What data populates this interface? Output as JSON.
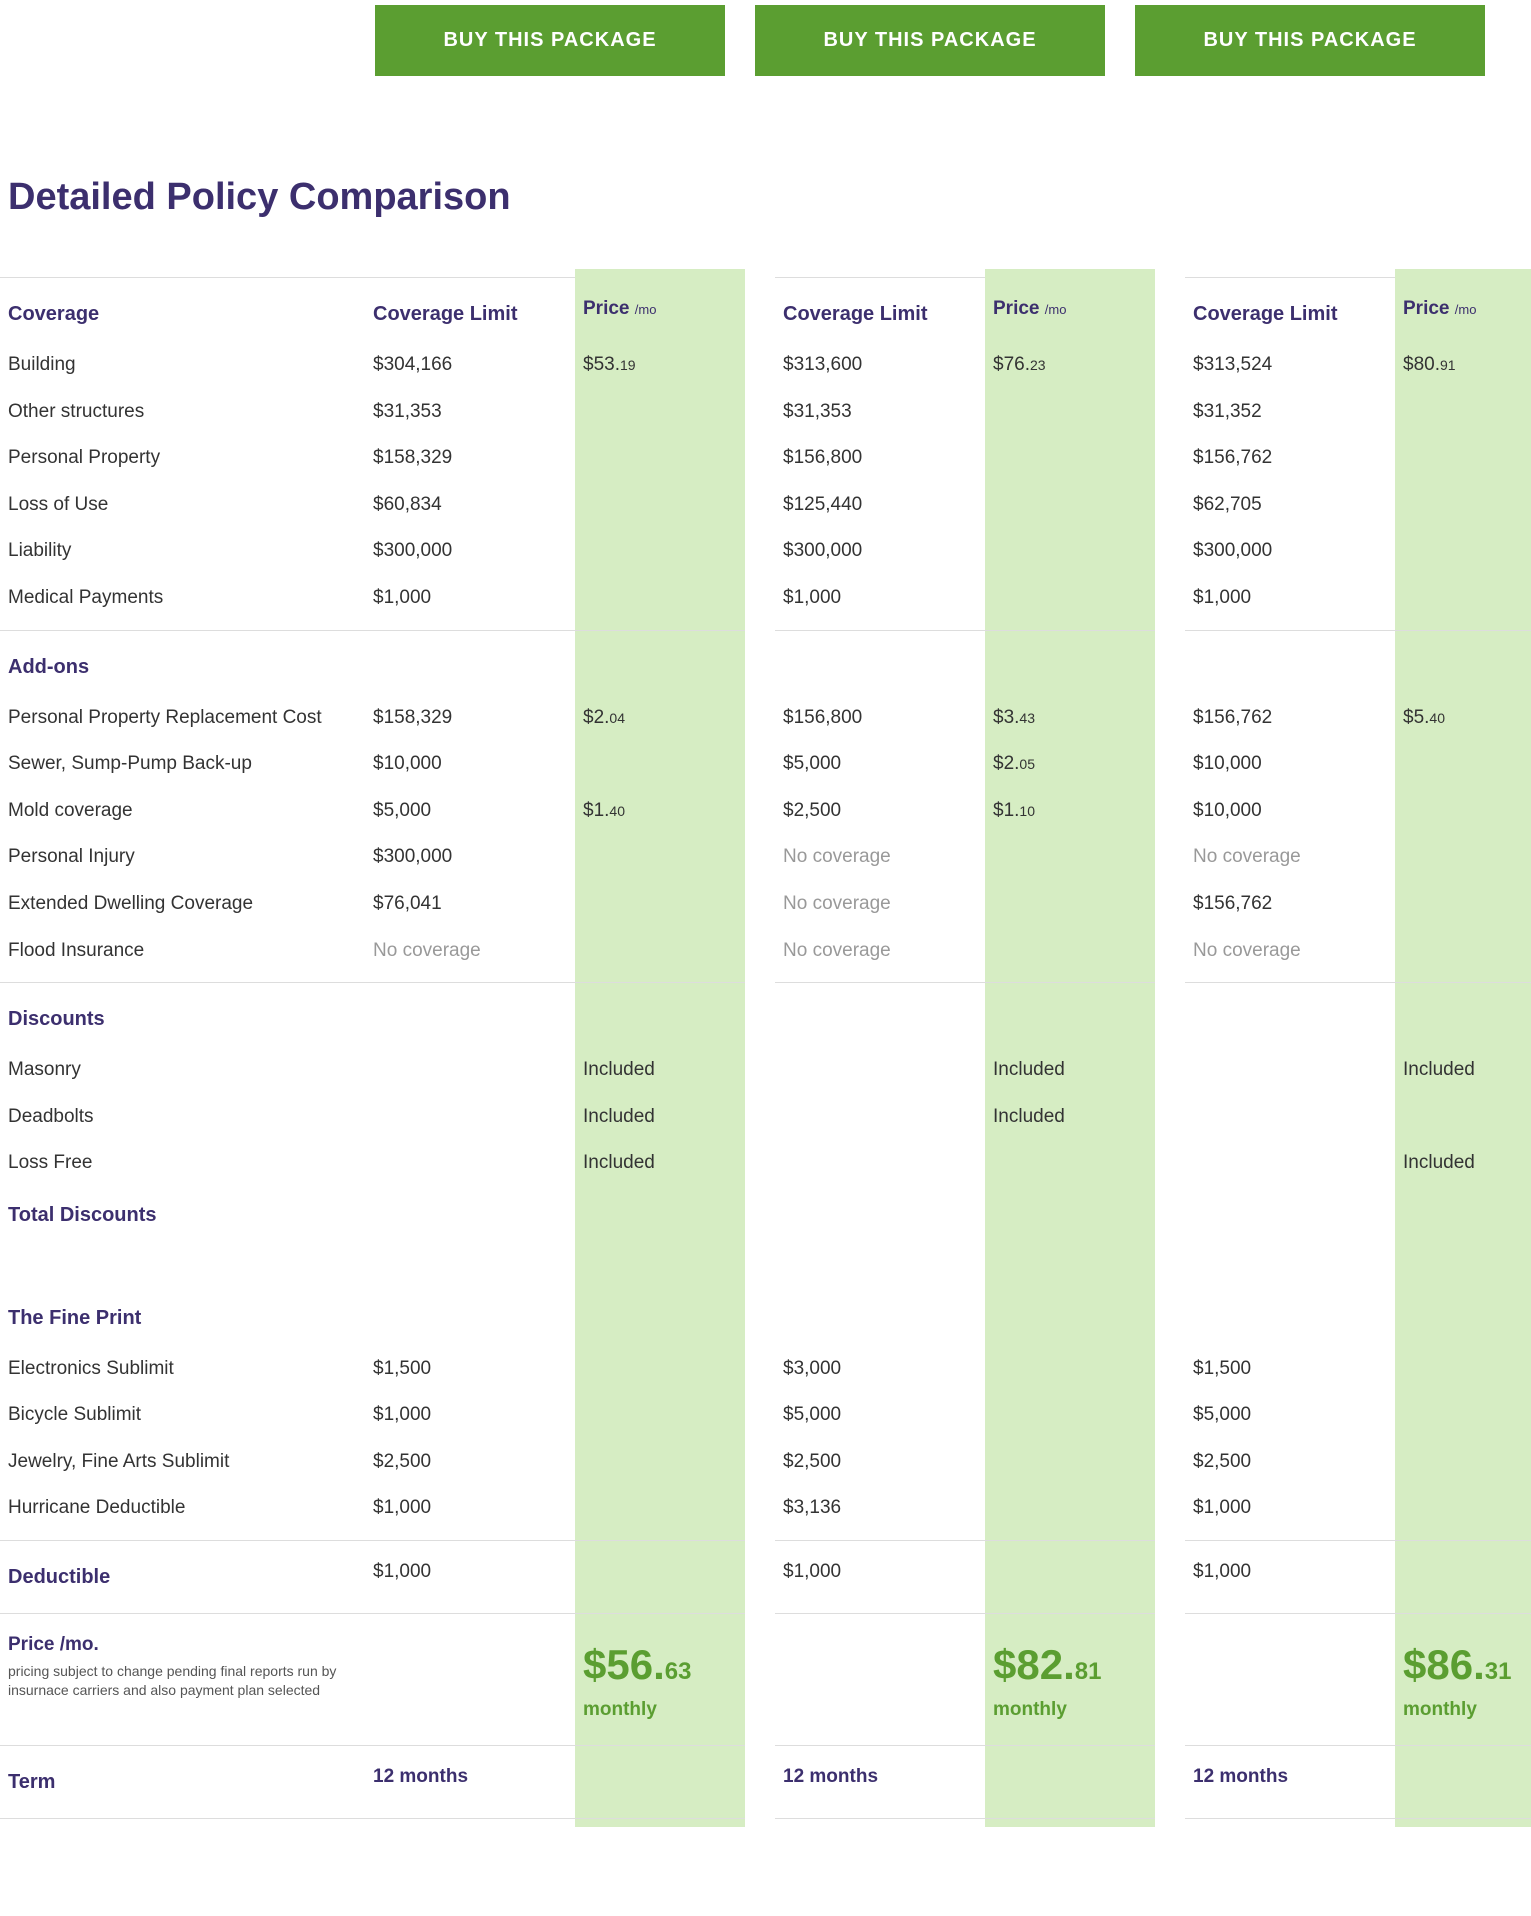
{
  "colors": {
    "accent_green": "#5b9e31",
    "accent_green_light": "#d6edc3",
    "heading_navy": "#3c2f6e",
    "text_body": "#333333",
    "text_muted": "#999999",
    "rule": "#dddddd",
    "background": "#ffffff",
    "button_text": "#ffffff"
  },
  "buttons": {
    "buy_label": "BUY THIS PACKAGE"
  },
  "page_title": "Detailed Policy Comparison",
  "headers": {
    "coverage": "Coverage",
    "coverage_limit": "Coverage Limit",
    "price": "Price",
    "price_suffix": "/mo",
    "addons": "Add-ons",
    "discounts": "Discounts",
    "total_discounts": "Total Discounts",
    "fine_print": "The Fine Print",
    "deductible": "Deductible",
    "price_mo": "Price /mo.",
    "price_mo_sub": "pricing subject to change pending final reports run by insurnace carriers and also payment plan selected",
    "term": "Term",
    "monthly": "monthly"
  },
  "coverage_rows": [
    {
      "label": "Building",
      "p1": "$304,166",
      "p2": "$313,600",
      "p3": "$313,524"
    },
    {
      "label": "Other structures",
      "p1": "$31,353",
      "p2": "$31,353",
      "p3": "$31,352"
    },
    {
      "label": "Personal Property",
      "p1": "$158,329",
      "p2": "$156,800",
      "p3": "$156,762"
    },
    {
      "label": "Loss of Use",
      "p1": "$60,834",
      "p2": "$125,440",
      "p3": "$62,705"
    },
    {
      "label": "Liability",
      "p1": "$300,000",
      "p2": "$300,000",
      "p3": "$300,000"
    },
    {
      "label": "Medical Payments",
      "p1": "$1,000",
      "p2": "$1,000",
      "p3": "$1,000"
    }
  ],
  "coverage_price": {
    "p1_big": "$53.",
    "p1_small": "19",
    "p2_big": "$76.",
    "p2_small": "23",
    "p3_big": "$80.",
    "p3_small": "91"
  },
  "addons": [
    {
      "label": "Personal Property Replacement Cost",
      "p1": "$158,329",
      "p1p_big": "$2.",
      "p1p_small": "04",
      "p2": "$156,800",
      "p2p_big": "$3.",
      "p2p_small": "43",
      "p3": "$156,762",
      "p3p_big": "$5.",
      "p3p_small": "40"
    },
    {
      "label": "Sewer, Sump-Pump Back-up",
      "p1": "$10,000",
      "p1p_big": "",
      "p1p_small": "",
      "p2": "$5,000",
      "p2p_big": "$2.",
      "p2p_small": "05",
      "p3": "$10,000",
      "p3p_big": "",
      "p3p_small": ""
    },
    {
      "label": "Mold coverage",
      "p1": "$5,000",
      "p1p_big": "$1.",
      "p1p_small": "40",
      "p2": "$2,500",
      "p2p_big": "$1.",
      "p2p_small": "10",
      "p3": "$10,000",
      "p3p_big": "",
      "p3p_small": ""
    },
    {
      "label": "Personal Injury",
      "p1": "$300,000",
      "p1_muted": false,
      "p1p_big": "",
      "p1p_small": "",
      "p2": "No coverage",
      "p2_muted": true,
      "p2p_big": "",
      "p2p_small": "",
      "p3": "No coverage",
      "p3_muted": true,
      "p3p_big": "",
      "p3p_small": ""
    },
    {
      "label": "Extended Dwelling Coverage",
      "p1": "$76,041",
      "p1_muted": false,
      "p1p_big": "",
      "p1p_small": "",
      "p2": "No coverage",
      "p2_muted": true,
      "p2p_big": "",
      "p2p_small": "",
      "p3": "$156,762",
      "p3_muted": false,
      "p3p_big": "",
      "p3p_small": ""
    },
    {
      "label": "Flood Insurance",
      "p1": "No coverage",
      "p1_muted": true,
      "p1p_big": "",
      "p1p_small": "",
      "p2": "No coverage",
      "p2_muted": true,
      "p2p_big": "",
      "p2p_small": "",
      "p3": "No coverage",
      "p3_muted": true,
      "p3p_big": "",
      "p3p_small": ""
    }
  ],
  "discounts": [
    {
      "label": "Masonry",
      "p1": "Included",
      "p2": "Included",
      "p3": "Included"
    },
    {
      "label": "Deadbolts",
      "p1": "Included",
      "p2": "Included",
      "p3": ""
    },
    {
      "label": "Loss Free",
      "p1": "Included",
      "p2": "",
      "p3": "Included"
    }
  ],
  "fineprint": [
    {
      "label": "Electronics Sublimit",
      "p1": "$1,500",
      "p2": "$3,000",
      "p3": "$1,500"
    },
    {
      "label": "Bicycle Sublimit",
      "p1": "$1,000",
      "p2": "$5,000",
      "p3": "$5,000"
    },
    {
      "label": "Jewelry, Fine Arts Sublimit",
      "p1": "$2,500",
      "p2": "$2,500",
      "p3": "$2,500"
    },
    {
      "label": "Hurricane Deductible",
      "p1": "$1,000",
      "p2": "$3,136",
      "p3": "$1,000"
    }
  ],
  "deductible": {
    "p1": "$1,000",
    "p2": "$1,000",
    "p3": "$1,000"
  },
  "totals": {
    "p1_cur": "$56.",
    "p1_dec": "63",
    "p2_cur": "$82.",
    "p2_dec": "81",
    "p3_cur": "$86.",
    "p3_dec": "31"
  },
  "term": {
    "p1": "12 months",
    "p2": "12 months",
    "p3": "12 months"
  }
}
